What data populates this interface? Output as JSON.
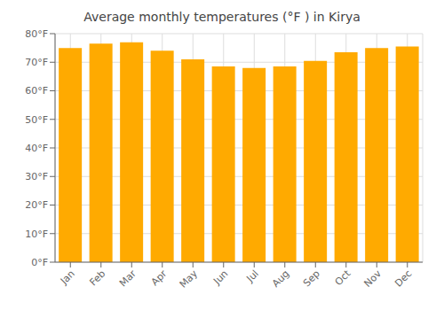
{
  "chart_data": {
    "type": "bar",
    "title": "Average monthly temperatures (°F ) in Kirya",
    "categories": [
      "Jan",
      "Feb",
      "Mar",
      "Apr",
      "May",
      "Jun",
      "Jul",
      "Aug",
      "Sep",
      "Oct",
      "Nov",
      "Dec"
    ],
    "values": [
      75,
      76.5,
      77,
      74,
      71,
      68.5,
      68,
      68.5,
      70.5,
      73.5,
      75,
      75.5
    ],
    "color": "#FFAA00",
    "ylim": [
      0,
      80
    ],
    "yticks": [
      {
        "value": 0,
        "label": "0°F"
      },
      {
        "value": 10,
        "label": "10°F"
      },
      {
        "value": 20,
        "label": "20°F"
      },
      {
        "value": 30,
        "label": "30°F"
      },
      {
        "value": 40,
        "label": "40°F"
      },
      {
        "value": 50,
        "label": "50°F"
      },
      {
        "value": 60,
        "label": "60°F"
      },
      {
        "value": 70,
        "label": "70°F"
      },
      {
        "value": 80,
        "label": "80°F"
      }
    ],
    "grid": true
  }
}
